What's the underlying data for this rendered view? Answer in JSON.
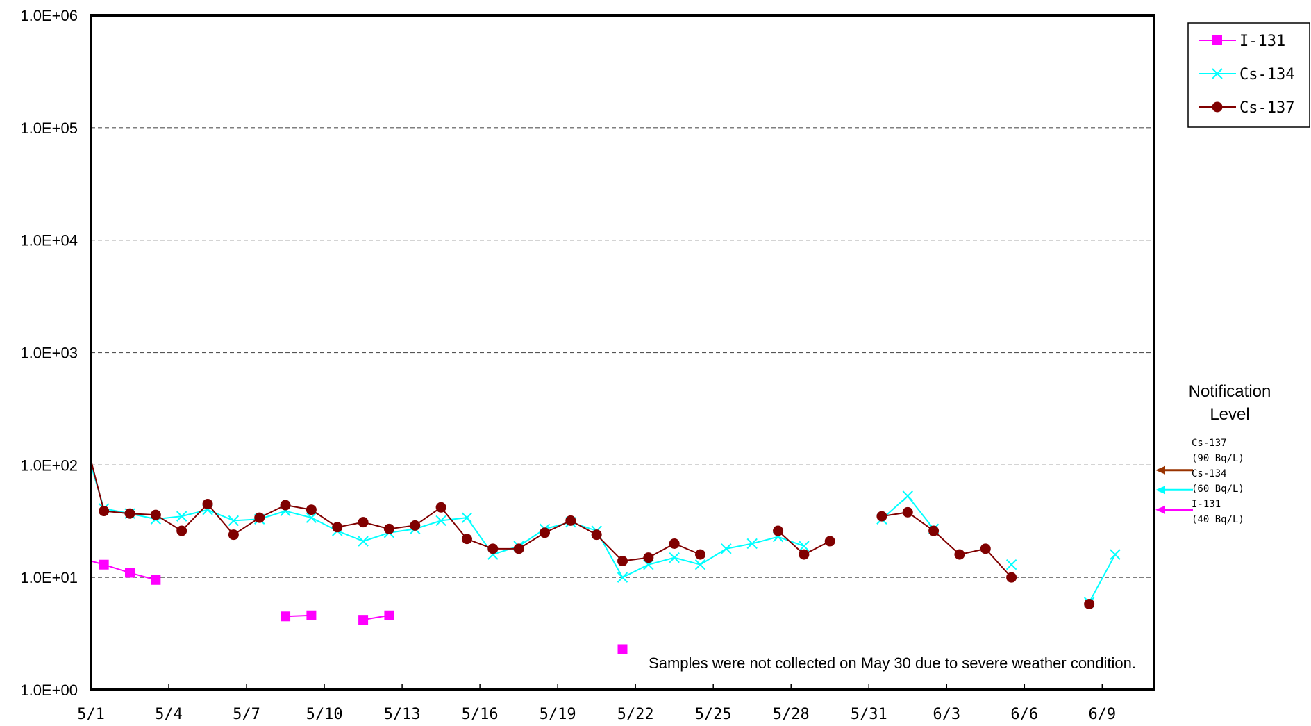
{
  "chart_data": {
    "type": "line",
    "y_scale": "log",
    "ylim": [
      1,
      1000000
    ],
    "y_ticks": [
      {
        "value": 1,
        "label": "1.0E+00"
      },
      {
        "value": 10,
        "label": "1.0E+01"
      },
      {
        "value": 100,
        "label": "1.0E+02"
      },
      {
        "value": 1000,
        "label": "1.0E+03"
      },
      {
        "value": 10000,
        "label": "1.0E+04"
      },
      {
        "value": 100000,
        "label": "1.0E+05"
      },
      {
        "value": 1000000,
        "label": "1.0E+06"
      }
    ],
    "xlim": [
      "2011-05-01",
      "2011-06-11"
    ],
    "x_ticks": [
      {
        "date": "2011-05-01",
        "label": "5/1"
      },
      {
        "date": "2011-05-04",
        "label": "5/4"
      },
      {
        "date": "2011-05-07",
        "label": "5/7"
      },
      {
        "date": "2011-05-10",
        "label": "5/10"
      },
      {
        "date": "2011-05-13",
        "label": "5/13"
      },
      {
        "date": "2011-05-16",
        "label": "5/16"
      },
      {
        "date": "2011-05-19",
        "label": "5/19"
      },
      {
        "date": "2011-05-22",
        "label": "5/22"
      },
      {
        "date": "2011-05-25",
        "label": "5/25"
      },
      {
        "date": "2011-05-28",
        "label": "5/28"
      },
      {
        "date": "2011-05-31",
        "label": "5/31"
      },
      {
        "date": "2011-06-03",
        "label": "6/3"
      },
      {
        "date": "2011-06-06",
        "label": "6/6"
      },
      {
        "date": "2011-06-09",
        "label": "6/9"
      }
    ],
    "grid": "horizontal dashed",
    "legend_position": "top-right",
    "series": [
      {
        "name": "I-131",
        "color": "#ff00ff",
        "marker": "square",
        "segments": [
          [
            [
              "2011-05-01",
              14
            ],
            [
              "2011-05-01T12:00",
              13
            ],
            [
              "2011-05-02T12:00",
              11
            ],
            [
              "2011-05-03T12:00",
              9.5
            ]
          ],
          [
            [
              "2011-05-08T12:00",
              4.5
            ],
            [
              "2011-05-09T12:00",
              4.6
            ]
          ],
          [
            [
              "2011-05-11T12:00",
              4.2
            ],
            [
              "2011-05-12T12:00",
              4.6
            ]
          ],
          [
            [
              "2011-05-21T12:00",
              2.3
            ]
          ]
        ]
      },
      {
        "name": "Cs-134",
        "color": "#00ffff",
        "marker": "x",
        "segments": [
          [
            [
              "2011-05-01",
              100
            ],
            [
              "2011-05-01T12:00",
              41
            ],
            [
              "2011-05-02T12:00",
              37
            ],
            [
              "2011-05-03T12:00",
              33
            ],
            [
              "2011-05-04T12:00",
              35
            ],
            [
              "2011-05-05T12:00",
              40
            ],
            [
              "2011-05-06T12:00",
              32
            ],
            [
              "2011-05-07T12:00",
              33
            ],
            [
              "2011-05-08T12:00",
              39
            ],
            [
              "2011-05-09T12:00",
              34
            ],
            [
              "2011-05-10T12:00",
              26
            ],
            [
              "2011-05-11T12:00",
              21
            ],
            [
              "2011-05-12T12:00",
              25
            ],
            [
              "2011-05-13T12:00",
              27
            ],
            [
              "2011-05-14T12:00",
              32
            ],
            [
              "2011-05-15T12:00",
              34
            ],
            [
              "2011-05-16T12:00",
              16
            ],
            [
              "2011-05-17T12:00",
              19
            ],
            [
              "2011-05-18T12:00",
              27
            ],
            [
              "2011-05-19T12:00",
              31
            ],
            [
              "2011-05-20T12:00",
              26
            ],
            [
              "2011-05-21T12:00",
              10
            ],
            [
              "2011-05-22T12:00",
              13
            ],
            [
              "2011-05-23T12:00",
              15
            ],
            [
              "2011-05-24T12:00",
              13
            ],
            [
              "2011-05-25T12:00",
              18
            ],
            [
              "2011-05-26T12:00",
              20
            ],
            [
              "2011-05-27T12:00",
              23
            ],
            [
              "2011-05-28T12:00",
              19
            ]
          ],
          [
            [
              "2011-05-31T12:00",
              33
            ],
            [
              "2011-06-01T12:00",
              53
            ],
            [
              "2011-06-02T12:00",
              27
            ]
          ],
          [
            [
              "2011-06-05T12:00",
              13
            ]
          ],
          [
            [
              "2011-06-08T12:00",
              6
            ],
            [
              "2011-06-09T12:00",
              16
            ]
          ]
        ]
      },
      {
        "name": "Cs-137",
        "color": "#800000",
        "marker": "circle",
        "segments": [
          [
            [
              "2011-05-01",
              110
            ],
            [
              "2011-05-01T12:00",
              39
            ],
            [
              "2011-05-02T12:00",
              37
            ],
            [
              "2011-05-03T12:00",
              36
            ],
            [
              "2011-05-04T12:00",
              26
            ],
            [
              "2011-05-05T12:00",
              45
            ],
            [
              "2011-05-06T12:00",
              24
            ],
            [
              "2011-05-07T12:00",
              34
            ],
            [
              "2011-05-08T12:00",
              44
            ],
            [
              "2011-05-09T12:00",
              40
            ],
            [
              "2011-05-10T12:00",
              28
            ],
            [
              "2011-05-11T12:00",
              31
            ],
            [
              "2011-05-12T12:00",
              27
            ],
            [
              "2011-05-13T12:00",
              29
            ],
            [
              "2011-05-14T12:00",
              42
            ],
            [
              "2011-05-15T12:00",
              22
            ],
            [
              "2011-05-16T12:00",
              18
            ],
            [
              "2011-05-17T12:00",
              18
            ],
            [
              "2011-05-18T12:00",
              25
            ],
            [
              "2011-05-19T12:00",
              32
            ],
            [
              "2011-05-20T12:00",
              24
            ],
            [
              "2011-05-21T12:00",
              14
            ],
            [
              "2011-05-22T12:00",
              15
            ],
            [
              "2011-05-23T12:00",
              20
            ],
            [
              "2011-05-24T12:00",
              16
            ]
          ],
          [
            [
              "2011-05-27T12:00",
              26
            ],
            [
              "2011-05-28T12:00",
              16
            ],
            [
              "2011-05-29T12:00",
              21
            ]
          ],
          [
            [
              "2011-05-31T12:00",
              35
            ],
            [
              "2011-06-01T12:00",
              38
            ],
            [
              "2011-06-02T12:00",
              26
            ],
            [
              "2011-06-03T12:00",
              16
            ],
            [
              "2011-06-04T12:00",
              18
            ],
            [
              "2011-06-05T12:00",
              10
            ]
          ],
          [
            [
              "2011-06-08T12:00",
              5.8
            ]
          ]
        ]
      }
    ],
    "notification_level": {
      "title_line1": "Notification",
      "title_line2": "Level",
      "items": [
        {
          "nuclide": "Cs-137",
          "limit_text": "(90 Bq/L)",
          "value": 90,
          "color": "#993300"
        },
        {
          "nuclide": "Cs-134",
          "limit_text": "(60 Bq/L)",
          "value": 60,
          "color": "#00ffff"
        },
        {
          "nuclide": "I-131",
          "limit_text": "(40 Bq/L)",
          "value": 40,
          "color": "#ff00ff"
        }
      ]
    },
    "annotation": "Samples were not collected on May 30  due to severe weather condition."
  }
}
